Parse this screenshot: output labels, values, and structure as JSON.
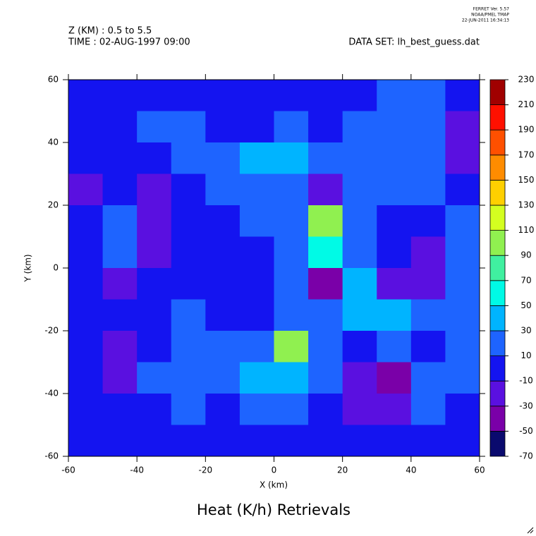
{
  "chart_data": {
    "type": "contourf",
    "title": "Heat (K/h) Retrievals",
    "header_lines": [
      "Z (KM) : 0.5 to 5.5",
      "TIME : 02-AUG-1997 09:00"
    ],
    "dataset": "DATA SET: lh_best_guess.dat",
    "stamp": [
      "FERRET Ver. 5.57",
      "NOAA/PMEL TMAP",
      "22-JUN-2011 16:34:13"
    ],
    "x_label": "X (km)",
    "y_label": "Y (km)",
    "xlim": [
      -60,
      60
    ],
    "ylim": [
      -60,
      60
    ],
    "xticks": [
      -60,
      -40,
      -20,
      0,
      20,
      40,
      60
    ],
    "yticks": [
      -60,
      -40,
      -20,
      0,
      20,
      40,
      60
    ],
    "x": [
      -55,
      -45,
      -35,
      -25,
      -15,
      -5,
      5,
      15,
      25,
      35,
      45,
      55
    ],
    "y": [
      55,
      45,
      35,
      25,
      15,
      5,
      -5,
      -15,
      -25,
      -35,
      -45,
      -55
    ],
    "z": [
      [
        0,
        0,
        0,
        0,
        0,
        0,
        0,
        0,
        0,
        15,
        20,
        0
      ],
      [
        0,
        0,
        15,
        20,
        0,
        0,
        15,
        0,
        15,
        25,
        20,
        -20
      ],
      [
        0,
        0,
        0,
        15,
        25,
        30,
        35,
        20,
        15,
        20,
        15,
        -20
      ],
      [
        -20,
        0,
        -30,
        0,
        15,
        15,
        20,
        -30,
        10,
        20,
        15,
        0
      ],
      [
        0,
        15,
        -30,
        0,
        0,
        15,
        15,
        90,
        15,
        0,
        0,
        15
      ],
      [
        0,
        15,
        -20,
        0,
        0,
        0,
        20,
        60,
        15,
        0,
        -20,
        15
      ],
      [
        0,
        -20,
        0,
        0,
        0,
        0,
        15,
        -40,
        35,
        -20,
        -30,
        15
      ],
      [
        0,
        0,
        0,
        15,
        0,
        0,
        15,
        15,
        30,
        40,
        15,
        15
      ],
      [
        0,
        -30,
        0,
        20,
        20,
        15,
        90,
        20,
        0,
        15,
        0,
        15
      ],
      [
        0,
        -30,
        15,
        20,
        20,
        40,
        30,
        15,
        -20,
        -40,
        15,
        20
      ],
      [
        0,
        0,
        0,
        15,
        0,
        15,
        15,
        0,
        -30,
        -20,
        15,
        0
      ],
      [
        0,
        0,
        0,
        0,
        0,
        0,
        0,
        0,
        0,
        0,
        0,
        0
      ]
    ],
    "levels": [
      -70,
      -50,
      -30,
      -10,
      10,
      30,
      50,
      70,
      90,
      110,
      130,
      150,
      170,
      190,
      210,
      230
    ],
    "colors": [
      "#0a0a6e",
      "#7a00a8",
      "#5a10e0",
      "#1414f0",
      "#1e64ff",
      "#00b4ff",
      "#00fae6",
      "#40f0a0",
      "#90f050",
      "#d4ff20",
      "#ffd000",
      "#ff8c00",
      "#ff5000",
      "#ff1000",
      "#a00000"
    ]
  }
}
